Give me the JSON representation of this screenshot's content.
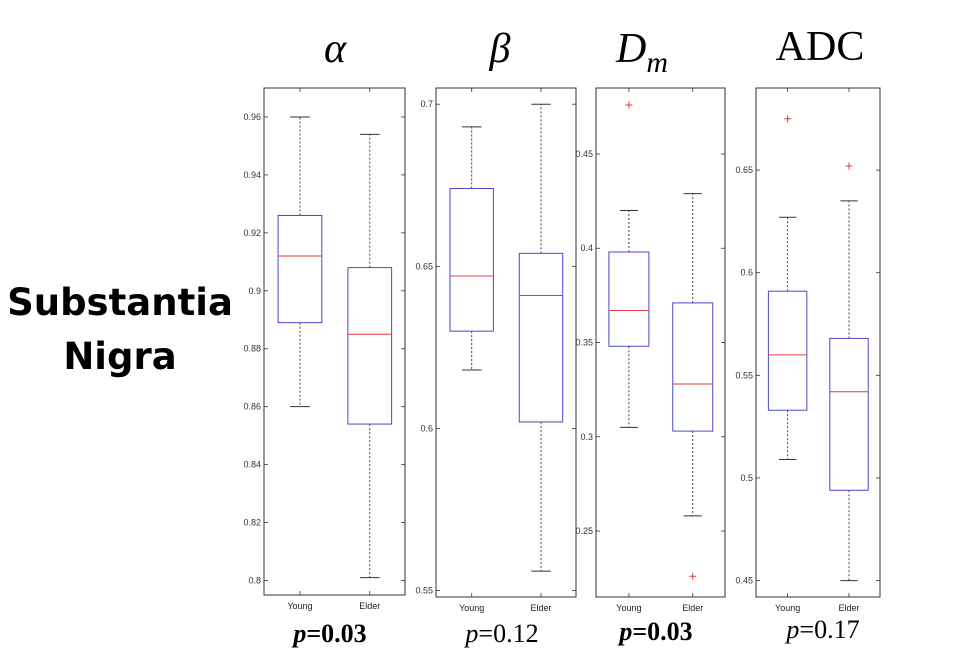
{
  "row_label": {
    "line1": "Substantia",
    "line2": "Nigra"
  },
  "colors": {
    "box": "#4a4ac8",
    "median": "#e03c3c",
    "axis": "#333333",
    "whisker": "#333333",
    "outlier": "#e03c3c"
  },
  "chart_data": [
    {
      "type": "box",
      "title": "α",
      "title_style": "italic",
      "categories": [
        "Young",
        "Elder"
      ],
      "ylim": [
        0.795,
        0.97
      ],
      "yticks": [
        "0.8",
        "0.82",
        "0.84",
        "0.86",
        "0.88",
        "0.9",
        "0.92",
        "0.94",
        "0.96"
      ],
      "series": [
        {
          "name": "Young",
          "whisker_low": 0.86,
          "q1": 0.889,
          "median": 0.912,
          "q3": 0.926,
          "whisker_high": 0.96,
          "outliers": []
        },
        {
          "name": "Elder",
          "whisker_low": 0.801,
          "q1": 0.854,
          "median": 0.885,
          "q3": 0.908,
          "whisker_high": 0.954,
          "outliers": []
        }
      ],
      "p_label": "p",
      "p_value": "=0.03",
      "p_bold": true
    },
    {
      "type": "box",
      "title": "β",
      "title_style": "italic",
      "categories": [
        "Young",
        "Elder"
      ],
      "ylim": [
        0.548,
        0.705
      ],
      "yticks": [
        "0.55",
        "0.6",
        "0.65",
        "0.7"
      ],
      "series": [
        {
          "name": "Young",
          "whisker_low": 0.618,
          "q1": 0.63,
          "median": 0.647,
          "q3": 0.674,
          "whisker_high": 0.693,
          "outliers": []
        },
        {
          "name": "Elder",
          "whisker_low": 0.556,
          "q1": 0.602,
          "median": 0.641,
          "q3": 0.654,
          "whisker_high": 0.7,
          "outliers": []
        }
      ],
      "p_label": "p",
      "p_value": "=0.12",
      "p_bold": false
    },
    {
      "type": "box",
      "title": "D",
      "title_sub": "m",
      "title_style": "italic",
      "categories": [
        "Young",
        "Elder"
      ],
      "ylim": [
        0.215,
        0.485
      ],
      "yticks": [
        "0.25",
        "0.3",
        "0.35",
        "0.4",
        "0.45"
      ],
      "series": [
        {
          "name": "Young",
          "whisker_low": 0.305,
          "q1": 0.348,
          "median": 0.367,
          "q3": 0.398,
          "whisker_high": 0.42,
          "outliers": [
            0.476
          ]
        },
        {
          "name": "Elder",
          "whisker_low": 0.258,
          "q1": 0.303,
          "median": 0.328,
          "q3": 0.371,
          "whisker_high": 0.429,
          "outliers": [
            0.226
          ]
        }
      ],
      "p_label": "p",
      "p_value": "=0.03",
      "p_bold": true
    },
    {
      "type": "box",
      "title": "ADC",
      "title_style": "normal",
      "categories": [
        "Young",
        "Elder"
      ],
      "ylim": [
        0.442,
        0.69
      ],
      "yticks": [
        "0.45",
        "0.5",
        "0.55",
        "0.6",
        "0.65"
      ],
      "series": [
        {
          "name": "Young",
          "whisker_low": 0.509,
          "q1": 0.533,
          "median": 0.56,
          "q3": 0.591,
          "whisker_high": 0.627,
          "outliers": [
            0.675
          ]
        },
        {
          "name": "Elder",
          "whisker_low": 0.45,
          "q1": 0.494,
          "median": 0.542,
          "q3": 0.568,
          "whisker_high": 0.635,
          "outliers": [
            0.652
          ]
        }
      ],
      "p_label": "p",
      "p_value": "=0.17",
      "p_bold": false
    }
  ]
}
